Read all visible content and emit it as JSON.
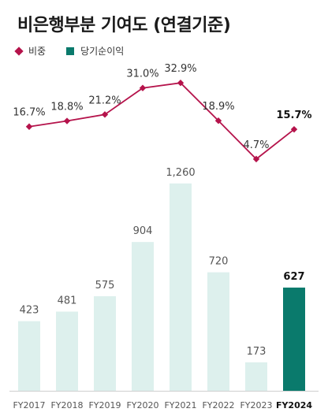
{
  "title": "비은행부분 기여도 (연결기준)",
  "legend": {
    "share_label": "비중",
    "profit_label": "당기순이익"
  },
  "colors": {
    "line": "#b5134b",
    "bar": "#ddf0ed",
    "bar_highlight": "#0a7a6c"
  },
  "chart_data": {
    "type": "bar",
    "categories": [
      "FY2017",
      "FY2018",
      "FY2019",
      "FY2020",
      "FY2021",
      "FY2022",
      "FY2023",
      "FY2024"
    ],
    "highlight_index": 7,
    "series": [
      {
        "name": "당기순이익",
        "type": "bar",
        "values": [
          423,
          481,
          575,
          904,
          1260,
          720,
          173,
          627
        ],
        "labels": [
          "423",
          "481",
          "575",
          "904",
          "1,260",
          "720",
          "173",
          "627"
        ]
      },
      {
        "name": "비중",
        "type": "line",
        "values": [
          16.7,
          18.8,
          21.2,
          31.0,
          32.9,
          18.9,
          4.7,
          15.7
        ],
        "labels": [
          "16.7%",
          "18.8%",
          "21.2%",
          "31.0%",
          "32.9%",
          "18.9%",
          "4.7%",
          "15.7%"
        ]
      }
    ],
    "bar_ylim": [
      0,
      1350
    ],
    "line_ylim": [
      0,
      35
    ],
    "grid": false,
    "legend_position": "top-left"
  }
}
